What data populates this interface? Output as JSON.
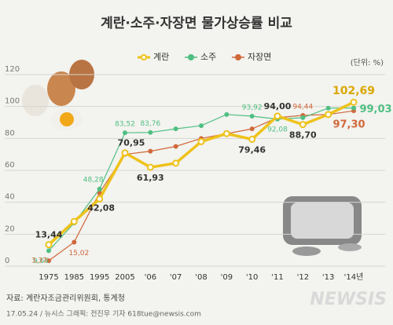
{
  "chart_data": {
    "type": "line",
    "title": "계란·소주·자장면 물가상승률 비교",
    "unit": "(단위: %)",
    "source": "자료: 계란자조금관리위원회, 통계청",
    "credit": "17.05.24 / 뉴시스 그래픽: 전진우 기자 618tue@newsis.com",
    "logo": "NEWSIS",
    "categories": [
      "1975",
      "1985",
      "1995",
      "2005",
      "'06",
      "'07",
      "'08",
      "'09",
      "'10",
      "'11",
      "'12",
      "'13",
      "'14년"
    ],
    "series": [
      {
        "name": "계란",
        "color": "#eec21a",
        "values": [
          13.44,
          28,
          42.08,
          70.95,
          61.93,
          64.5,
          78,
          83,
          79.46,
          94.0,
          88.7,
          95,
          102.69
        ],
        "value_labels": [
          "13,44",
          null,
          "42,08",
          "70,95",
          "61,93",
          null,
          null,
          null,
          "79,46",
          "94,00",
          "88,70",
          null,
          "102,69"
        ]
      },
      {
        "name": "소주",
        "color": "#4fbf82",
        "values": [
          9.66,
          27,
          48.28,
          83.52,
          83.76,
          86,
          88,
          95,
          93.92,
          92.08,
          93,
          99,
          99.03
        ],
        "value_labels": [
          "9,66",
          null,
          "48,28",
          "83,52",
          "83,76",
          null,
          null,
          null,
          "93,92",
          "92,08",
          null,
          null,
          "99,03"
        ]
      },
      {
        "name": "자장면",
        "color": "#d0683a",
        "values": [
          3.37,
          15.02,
          46,
          70,
          72,
          75,
          80,
          83,
          86,
          93,
          94.44,
          95,
          97.3
        ],
        "value_labels": [
          "3,37",
          "15,02",
          null,
          null,
          null,
          null,
          null,
          null,
          null,
          null,
          "94,44",
          null,
          "97,30"
        ]
      }
    ],
    "ylim": [
      0,
      120
    ],
    "yticks": [
      0,
      20,
      40,
      60,
      80,
      100,
      120
    ],
    "grid": true
  }
}
